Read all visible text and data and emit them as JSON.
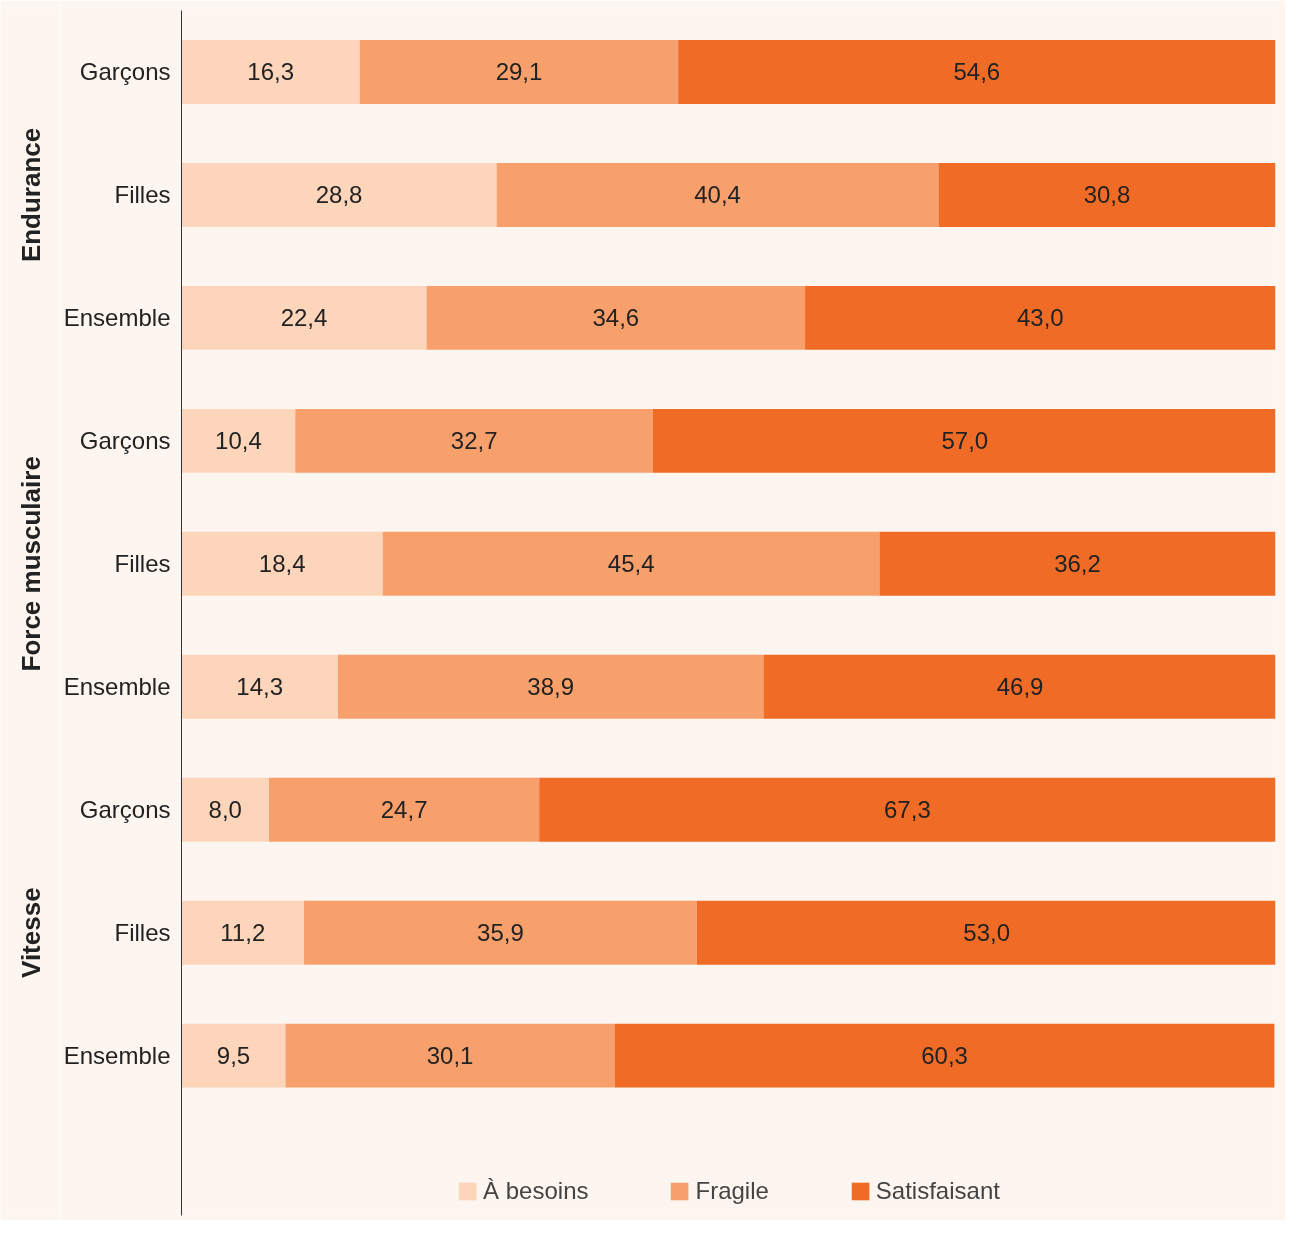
{
  "chart_data": {
    "type": "bar",
    "orientation": "horizontal",
    "stacked": true,
    "categories": [
      "Garçons",
      "Filles",
      "Ensemble",
      "Garçons",
      "Filles",
      "Ensemble",
      "Garçons",
      "Filles",
      "Ensemble"
    ],
    "series": [
      {
        "name": "À besoins",
        "color": "#fcd5bb",
        "values": [
          16.3,
          28.8,
          22.4,
          10.4,
          18.4,
          14.3,
          8.0,
          11.2,
          9.5
        ],
        "value_labels": [
          "16,3",
          "28,8",
          "22,4",
          "10,4",
          "18,4",
          "14,3",
          "8,0",
          "11,2",
          "9,5"
        ]
      },
      {
        "name": "Fragile",
        "color": "#f8a06c",
        "values": [
          29.1,
          40.4,
          34.6,
          32.7,
          45.4,
          38.9,
          24.7,
          35.9,
          30.1
        ],
        "value_labels": [
          "29,1",
          "40,4",
          "34,6",
          "32,7",
          "45,4",
          "38,9",
          "24,7",
          "35,9",
          "30,1"
        ]
      },
      {
        "name": "Satisfaisant",
        "color": "#ef6b26",
        "values": [
          54.6,
          30.8,
          43.0,
          57.0,
          36.2,
          46.9,
          67.3,
          53.0,
          60.3
        ],
        "value_labels": [
          "54,6",
          "30,8",
          "43,0",
          "57,0",
          "36,2",
          "46,9",
          "67,3",
          "53,0",
          "60,3"
        ]
      }
    ],
    "xlim": [
      0,
      100
    ],
    "tick_labels": "y",
    "grid": false,
    "legend": "bottom",
    "annotations": [
      "Endurance",
      "Force musculaire",
      "Vitesse"
    ]
  }
}
